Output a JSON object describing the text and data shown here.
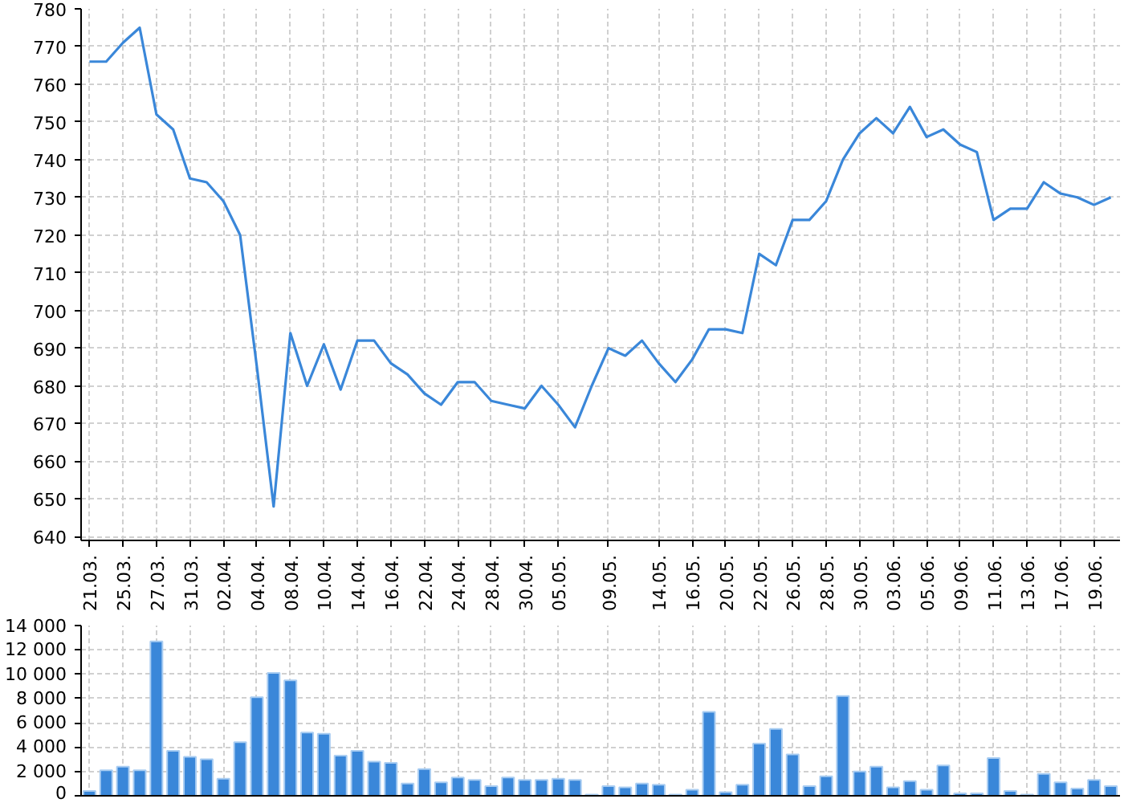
{
  "chart_data": [
    {
      "type": "line",
      "categories": [
        "21.03.",
        null,
        "25.03.",
        null,
        "27.03.",
        null,
        "31.03.",
        null,
        "02.04.",
        null,
        "04.04.",
        null,
        "08.04.",
        null,
        "10.04.",
        null,
        "14.04.",
        null,
        "16.04.",
        null,
        "22.04.",
        null,
        "24.04.",
        null,
        "28.04.",
        null,
        "30.04.",
        null,
        "05.05.",
        null,
        null,
        "09.05.",
        null,
        null,
        "14.05.",
        null,
        "16.05.",
        null,
        "20.05.",
        null,
        "22.05.",
        null,
        "26.05.",
        null,
        "28.05.",
        null,
        "30.05.",
        null,
        "03.06.",
        null,
        "05.06.",
        null,
        "09.06.",
        null,
        "11.06.",
        null,
        "13.06.",
        null,
        "17.06.",
        null,
        "19.06.",
        null
      ],
      "values": [
        766,
        766,
        771,
        775,
        752,
        748,
        735,
        734,
        729,
        720,
        685,
        648,
        694,
        680,
        691,
        679,
        692,
        692,
        686,
        683,
        678,
        675,
        681,
        681,
        676,
        675,
        674,
        680,
        675,
        669,
        680,
        690,
        688,
        692,
        686,
        681,
        687,
        695,
        695,
        694,
        715,
        712,
        724,
        724,
        729,
        740,
        747,
        751,
        747,
        754,
        746,
        748,
        744,
        742,
        724,
        727,
        727,
        734,
        731,
        730,
        728,
        730
      ],
      "color": "#3a87d9",
      "ylim": [
        639,
        780
      ],
      "yticks": [
        640,
        650,
        660,
        670,
        680,
        690,
        700,
        710,
        720,
        730,
        740,
        750,
        760,
        770,
        780
      ],
      "grid": true
    },
    {
      "type": "bar",
      "categories": [
        "21.03.",
        null,
        "25.03.",
        null,
        "27.03.",
        null,
        "31.03.",
        null,
        "02.04.",
        null,
        "04.04.",
        null,
        "08.04.",
        null,
        "10.04.",
        null,
        "14.04.",
        null,
        "16.04.",
        null,
        "22.04.",
        null,
        "24.04.",
        null,
        "28.04.",
        null,
        "30.04.",
        null,
        "05.05.",
        null,
        null,
        "09.05.",
        null,
        null,
        "14.05.",
        null,
        "16.05.",
        null,
        "20.05.",
        null,
        "22.05.",
        null,
        "26.05.",
        null,
        "28.05.",
        null,
        "30.05.",
        null,
        "03.06.",
        null,
        "05.06.",
        null,
        "09.06.",
        null,
        "11.06.",
        null,
        "13.06.",
        null,
        "17.06.",
        null,
        "19.06.",
        null
      ],
      "values": [
        400,
        2100,
        2400,
        2100,
        12700,
        3700,
        3200,
        3000,
        1400,
        4400,
        8100,
        10100,
        9500,
        5200,
        5100,
        3300,
        3700,
        2800,
        2700,
        1000,
        2200,
        1100,
        1500,
        1300,
        800,
        1500,
        1300,
        1300,
        1400,
        1300,
        100,
        800,
        700,
        1000,
        900,
        100,
        500,
        6900,
        300,
        900,
        4300,
        5500,
        3400,
        800,
        1600,
        8200,
        2000,
        2400,
        700,
        1200,
        500,
        2500,
        200,
        200,
        3100,
        400,
        100,
        1800,
        1100,
        600,
        1300,
        800
      ],
      "color": "#3a87d9",
      "ylim": [
        0,
        14000
      ],
      "yticks": [
        {
          "value": 0,
          "label": "0"
        },
        {
          "value": 2000,
          "label": "2 000"
        },
        {
          "value": 4000,
          "label": "4 000"
        },
        {
          "value": 6000,
          "label": "6 000"
        },
        {
          "value": 8000,
          "label": "8 000"
        },
        {
          "value": 10000,
          "label": "10 000"
        },
        {
          "value": 12000,
          "label": "12 000"
        },
        {
          "value": 14000,
          "label": "14 000"
        }
      ],
      "grid": true,
      "tick_labels": "y"
    }
  ]
}
